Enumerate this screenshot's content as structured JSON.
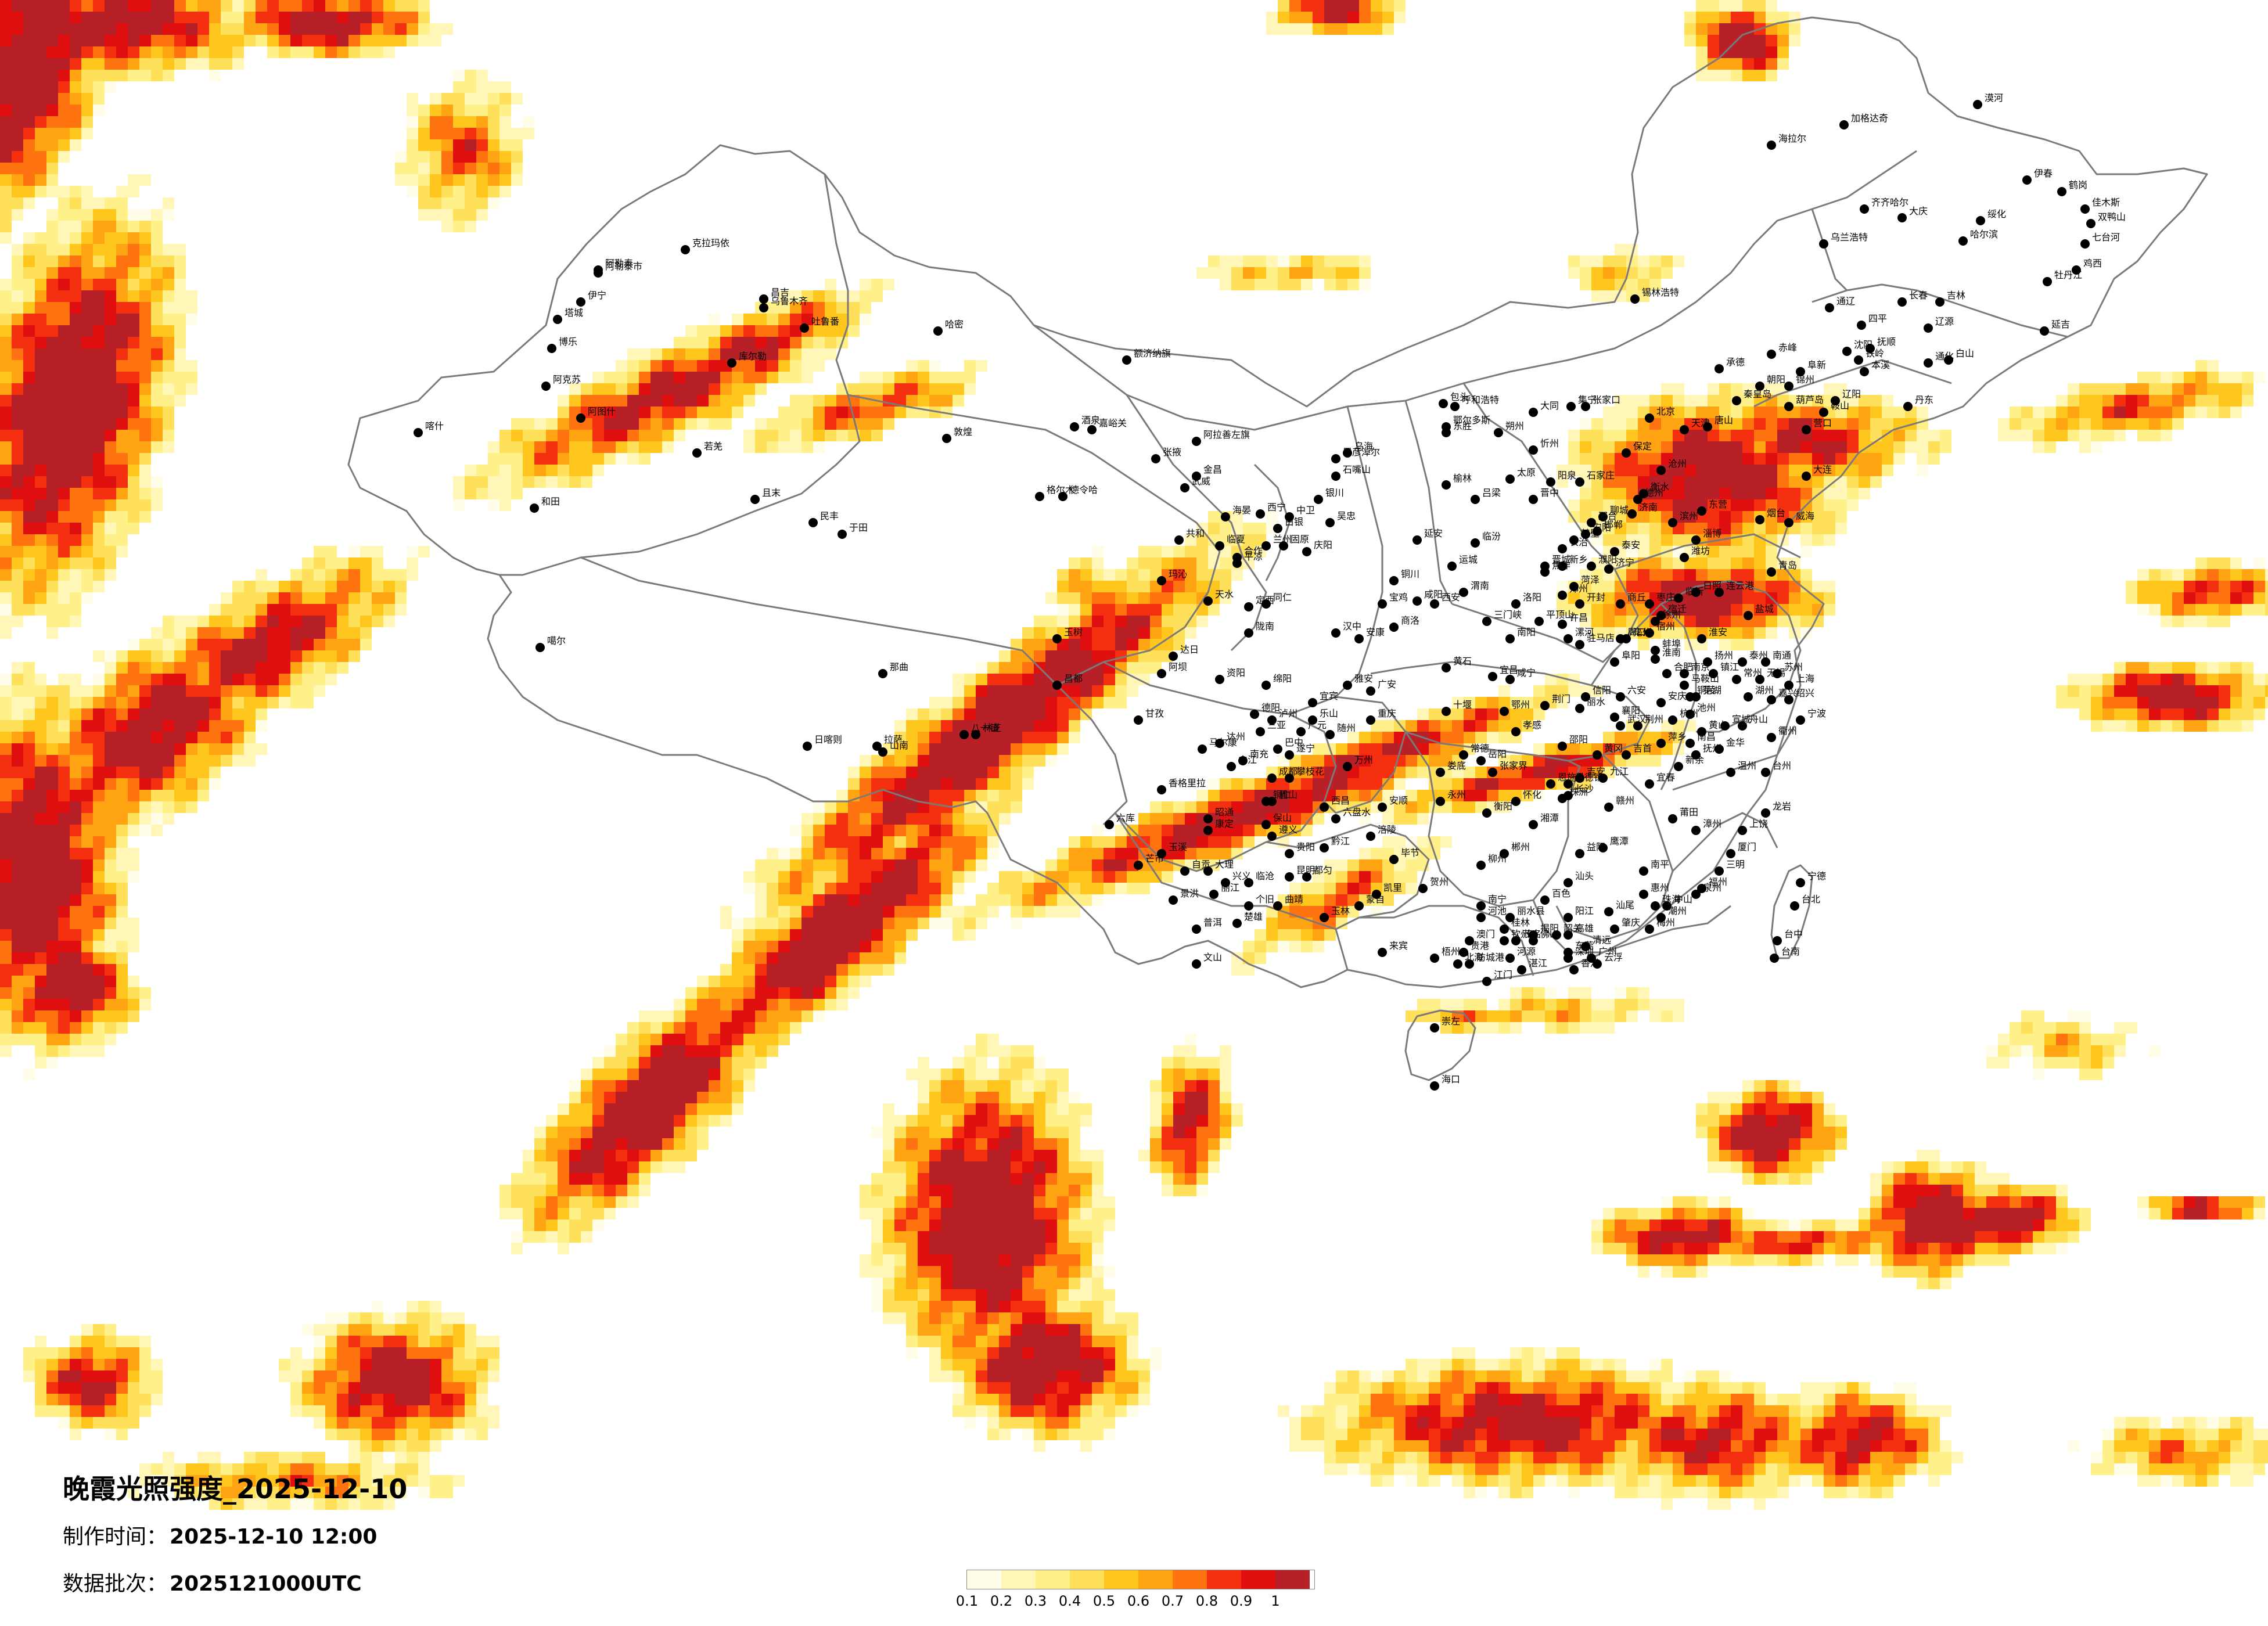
{
  "map": {
    "title": "晚霞光照强度_2025-12-10",
    "production_time_label": "制作时间：",
    "production_time_value": "2025-12-10 12:00",
    "batch_label": "数据批次：",
    "batch_value": "2025121000UTC"
  },
  "legend": {
    "labels": [
      "0.1",
      "0.2",
      "0.3",
      "0.4",
      "0.5",
      "0.6",
      "0.7",
      "0.8",
      "0.9",
      "1"
    ],
    "colors": [
      "#fffce8",
      "#fff6b8",
      "#fff08a",
      "#ffe05a",
      "#ffc61e",
      "#ffa412",
      "#ff7410",
      "#f43010",
      "#e01010",
      "#b82028"
    ]
  },
  "cities": [
    {
      "name": "喀什"
    },
    {
      "name": "克拉玛依"
    },
    {
      "name": "阿勒泰"
    },
    {
      "name": "伊宁"
    },
    {
      "name": "昌吉"
    },
    {
      "name": "乌鲁木齐"
    },
    {
      "name": "吐鲁番"
    },
    {
      "name": "哈密"
    },
    {
      "name": "库尔勒"
    },
    {
      "name": "阿克苏"
    },
    {
      "name": "和田"
    },
    {
      "name": "嘉峪关"
    },
    {
      "name": "酒泉"
    },
    {
      "name": "敦煌"
    },
    {
      "name": "张掖"
    },
    {
      "name": "武威"
    },
    {
      "name": "金昌"
    },
    {
      "name": "格尔木"
    },
    {
      "name": "德令哈"
    },
    {
      "name": "西宁"
    },
    {
      "name": "兰州"
    },
    {
      "name": "玛沁"
    },
    {
      "name": "玉树"
    },
    {
      "name": "那曲"
    },
    {
      "name": "日喀则"
    },
    {
      "name": "拉萨"
    },
    {
      "name": "山南"
    },
    {
      "name": "林芝"
    },
    {
      "name": "昌都"
    },
    {
      "name": "八一镇"
    },
    {
      "name": "噶尔"
    },
    {
      "name": "银川"
    },
    {
      "name": "吴忠"
    },
    {
      "name": "中卫"
    },
    {
      "name": "固原"
    },
    {
      "name": "乌海"
    },
    {
      "name": "巴彦淖尔"
    },
    {
      "name": "包头"
    },
    {
      "name": "呼和浩特"
    },
    {
      "name": "鄂尔多斯"
    },
    {
      "name": "东胜"
    },
    {
      "name": "集宁"
    },
    {
      "name": "锡林浩特"
    },
    {
      "name": "赤峰"
    },
    {
      "name": "通辽"
    },
    {
      "name": "乌兰浩特"
    },
    {
      "name": "海拉尔"
    },
    {
      "name": "加格达奇"
    },
    {
      "name": "漠河"
    },
    {
      "name": "齐齐哈尔"
    },
    {
      "name": "大庆"
    },
    {
      "name": "哈尔滨"
    },
    {
      "name": "绥化"
    },
    {
      "name": "伊春"
    },
    {
      "name": "鹤岗"
    },
    {
      "name": "佳木斯"
    },
    {
      "name": "双鸭山"
    },
    {
      "name": "七台河"
    },
    {
      "name": "鸡西"
    },
    {
      "name": "牡丹江"
    },
    {
      "name": "长春"
    },
    {
      "name": "吉林"
    },
    {
      "name": "四平"
    },
    {
      "name": "辽源"
    },
    {
      "name": "通化"
    },
    {
      "name": "白山"
    },
    {
      "name": "延吉"
    },
    {
      "name": "沈阳"
    },
    {
      "name": "抚顺"
    },
    {
      "name": "本溪"
    },
    {
      "name": "丹东"
    },
    {
      "name": "大连"
    },
    {
      "name": "锦州"
    },
    {
      "name": "阜新"
    },
    {
      "name": "朝阳"
    },
    {
      "name": "葫芦岛"
    },
    {
      "name": "营口"
    },
    {
      "name": "鞍山"
    },
    {
      "name": "辽阳"
    },
    {
      "name": "铁岭"
    },
    {
      "name": "承德"
    },
    {
      "name": "张家口"
    },
    {
      "name": "北京"
    },
    {
      "name": "天津"
    },
    {
      "name": "唐山"
    },
    {
      "name": "秦皇岛"
    },
    {
      "name": "保定"
    },
    {
      "name": "石家庄"
    },
    {
      "name": "衡水"
    },
    {
      "name": "沧州"
    },
    {
      "name": "邢台"
    },
    {
      "name": "邯郸"
    },
    {
      "name": "大同"
    },
    {
      "name": "朔州"
    },
    {
      "name": "忻州"
    },
    {
      "name": "太原"
    },
    {
      "name": "阳泉"
    },
    {
      "name": "晋中"
    },
    {
      "name": "吕梁"
    },
    {
      "name": "长治"
    },
    {
      "name": "晋城"
    },
    {
      "name": "临汾"
    },
    {
      "name": "运城"
    },
    {
      "name": "榆林"
    },
    {
      "name": "延安"
    },
    {
      "name": "铜川"
    },
    {
      "name": "渭南"
    },
    {
      "name": "西安"
    },
    {
      "name": "咸阳"
    },
    {
      "name": "宝鸡"
    },
    {
      "name": "汉中"
    },
    {
      "name": "安康"
    },
    {
      "name": "商洛"
    },
    {
      "name": "天水"
    },
    {
      "name": "平凉"
    },
    {
      "name": "庆阳"
    },
    {
      "name": "定西"
    },
    {
      "name": "陇南"
    },
    {
      "name": "济南"
    },
    {
      "name": "德州"
    },
    {
      "name": "聊城"
    },
    {
      "name": "泰安"
    },
    {
      "name": "济宁"
    },
    {
      "name": "菏泽"
    },
    {
      "name": "枣庄"
    },
    {
      "name": "临沂"
    },
    {
      "name": "日照"
    },
    {
      "name": "潍坊"
    },
    {
      "name": "淄博"
    },
    {
      "name": "东营"
    },
    {
      "name": "滨州"
    },
    {
      "name": "烟台"
    },
    {
      "name": "威海"
    },
    {
      "name": "青岛"
    },
    {
      "name": "郑州"
    },
    {
      "name": "开封"
    },
    {
      "name": "洛阳"
    },
    {
      "name": "平顶山"
    },
    {
      "name": "安阳"
    },
    {
      "name": "鹤壁"
    },
    {
      "name": "新乡"
    },
    {
      "name": "焦作"
    },
    {
      "name": "濮阳"
    },
    {
      "name": "许昌"
    },
    {
      "name": "漯河"
    },
    {
      "name": "三门峡"
    },
    {
      "name": "南阳"
    },
    {
      "name": "商丘"
    },
    {
      "name": "信阳"
    },
    {
      "name": "周口"
    },
    {
      "name": "驻马店"
    },
    {
      "name": "徐州"
    },
    {
      "name": "连云港"
    },
    {
      "name": "宿迁"
    },
    {
      "name": "淮安"
    },
    {
      "name": "盐城"
    },
    {
      "name": "扬州"
    },
    {
      "name": "泰州"
    },
    {
      "name": "南通"
    },
    {
      "name": "南京"
    },
    {
      "name": "镇江"
    },
    {
      "name": "常州"
    },
    {
      "name": "无锡"
    },
    {
      "name": "苏州"
    },
    {
      "name": "上海"
    },
    {
      "name": "合肥"
    },
    {
      "name": "蚌埠"
    },
    {
      "name": "淮南"
    },
    {
      "name": "阜阳"
    },
    {
      "name": "宿州"
    },
    {
      "name": "亳州"
    },
    {
      "name": "六安"
    },
    {
      "name": "安庆"
    },
    {
      "name": "芜湖"
    },
    {
      "name": "马鞍山"
    },
    {
      "name": "铜陵"
    },
    {
      "name": "黄山"
    },
    {
      "name": "宣城"
    },
    {
      "name": "池州"
    },
    {
      "name": "杭州"
    },
    {
      "name": "湖州"
    },
    {
      "name": "嘉兴"
    },
    {
      "name": "绍兴"
    },
    {
      "name": "宁波"
    },
    {
      "name": "舟山"
    },
    {
      "name": "金华"
    },
    {
      "name": "衢州"
    },
    {
      "name": "台州"
    },
    {
      "name": "温州"
    },
    {
      "name": "丽水"
    },
    {
      "name": "武汉"
    },
    {
      "name": "黄石"
    },
    {
      "name": "十堰"
    },
    {
      "name": "宜昌"
    },
    {
      "name": "襄阳"
    },
    {
      "name": "鄂州"
    },
    {
      "name": "荆门"
    },
    {
      "name": "孝感"
    },
    {
      "name": "荆州"
    },
    {
      "name": "黄冈"
    },
    {
      "name": "咸宁"
    },
    {
      "name": "随州"
    },
    {
      "name": "恩施"
    },
    {
      "name": "长沙"
    },
    {
      "name": "株洲"
    },
    {
      "name": "湘潭"
    },
    {
      "name": "衡阳"
    },
    {
      "name": "邵阳"
    },
    {
      "name": "岳阳"
    },
    {
      "name": "常德"
    },
    {
      "name": "张家界"
    },
    {
      "name": "益阳"
    },
    {
      "name": "郴州"
    },
    {
      "name": "永州"
    },
    {
      "name": "怀化"
    },
    {
      "name": "娄底"
    },
    {
      "name": "吉首"
    },
    {
      "name": "南昌"
    },
    {
      "name": "景德镇"
    },
    {
      "name": "萍乡"
    },
    {
      "name": "九江"
    },
    {
      "name": "新余"
    },
    {
      "name": "鹰潭"
    },
    {
      "name": "赣州"
    },
    {
      "name": "吉安"
    },
    {
      "name": "宜春"
    },
    {
      "name": "抚州"
    },
    {
      "name": "上饶"
    },
    {
      "name": "福州"
    },
    {
      "name": "厦门"
    },
    {
      "name": "莆田"
    },
    {
      "name": "三明"
    },
    {
      "name": "泉州"
    },
    {
      "name": "漳州"
    },
    {
      "name": "南平"
    },
    {
      "name": "龙岩"
    },
    {
      "name": "宁德"
    },
    {
      "name": "台北"
    },
    {
      "name": "台中"
    },
    {
      "name": "台南"
    },
    {
      "name": "高雄"
    },
    {
      "name": "广州"
    },
    {
      "name": "深圳"
    },
    {
      "name": "珠海"
    },
    {
      "name": "汕头"
    },
    {
      "name": "韶关"
    },
    {
      "name": "佛山"
    },
    {
      "name": "江门"
    },
    {
      "name": "湛江"
    },
    {
      "name": "茂名"
    },
    {
      "name": "肇庆"
    },
    {
      "name": "惠州"
    },
    {
      "name": "梅州"
    },
    {
      "name": "汕尾"
    },
    {
      "name": "河源"
    },
    {
      "name": "阳江"
    },
    {
      "name": "清远"
    },
    {
      "name": "东莞"
    },
    {
      "name": "中山"
    },
    {
      "name": "潮州"
    },
    {
      "name": "揭阳"
    },
    {
      "name": "云浮"
    },
    {
      "name": "香港"
    },
    {
      "name": "澳门"
    },
    {
      "name": "南宁"
    },
    {
      "name": "柳州"
    },
    {
      "name": "桂林"
    },
    {
      "name": "梧州"
    },
    {
      "name": "北海"
    },
    {
      "name": "防城港"
    },
    {
      "name": "钦州"
    },
    {
      "name": "贵港"
    },
    {
      "name": "玉林"
    },
    {
      "name": "百色"
    },
    {
      "name": "贺州"
    },
    {
      "name": "河池"
    },
    {
      "name": "来宾"
    },
    {
      "name": "崇左"
    },
    {
      "name": "海口"
    },
    {
      "name": "三亚"
    },
    {
      "name": "成都"
    },
    {
      "name": "自贡"
    },
    {
      "name": "攀枝花"
    },
    {
      "name": "泸州"
    },
    {
      "name": "德阳"
    },
    {
      "name": "绵阳"
    },
    {
      "name": "广元"
    },
    {
      "name": "遂宁"
    },
    {
      "name": "内江"
    },
    {
      "name": "乐山"
    },
    {
      "name": "南充"
    },
    {
      "name": "眉山"
    },
    {
      "name": "宜宾"
    },
    {
      "name": "广安"
    },
    {
      "name": "达州"
    },
    {
      "name": "雅安"
    },
    {
      "name": "巴中"
    },
    {
      "name": "资阳"
    },
    {
      "name": "马尔康"
    },
    {
      "name": "康定"
    },
    {
      "name": "西昌"
    },
    {
      "name": "重庆"
    },
    {
      "name": "万州"
    },
    {
      "name": "涪陵"
    },
    {
      "name": "黔江"
    },
    {
      "name": "贵阳"
    },
    {
      "name": "六盘水"
    },
    {
      "name": "遵义"
    },
    {
      "name": "安顺"
    },
    {
      "name": "铜仁"
    },
    {
      "name": "毕节"
    },
    {
      "name": "凯里"
    },
    {
      "name": "都匀"
    },
    {
      "name": "兴义"
    },
    {
      "name": "昆明"
    },
    {
      "name": "曲靖"
    },
    {
      "name": "玉溪"
    },
    {
      "name": "保山"
    },
    {
      "name": "昭通"
    },
    {
      "name": "丽江"
    },
    {
      "name": "普洱"
    },
    {
      "name": "临沧"
    },
    {
      "name": "楚雄"
    },
    {
      "name": "蒙自"
    },
    {
      "name": "文山"
    },
    {
      "name": "景洪"
    },
    {
      "name": "大理"
    },
    {
      "name": "芒市"
    },
    {
      "name": "香格里拉"
    },
    {
      "name": "六库"
    },
    {
      "name": "个旧"
    },
    {
      "name": "丽水县"
    },
    {
      "name": "甘孜"
    },
    {
      "name": "阿坝"
    },
    {
      "name": "达日"
    },
    {
      "name": "海晏"
    },
    {
      "name": "共和"
    },
    {
      "name": "同仁"
    },
    {
      "name": "合作"
    },
    {
      "name": "临夏"
    },
    {
      "name": "白银"
    },
    {
      "name": "石嘴山"
    },
    {
      "name": "阿拉善左旗"
    },
    {
      "name": "额济纳旗"
    },
    {
      "name": "阿勒泰市"
    },
    {
      "name": "塔城"
    },
    {
      "name": "博乐"
    },
    {
      "name": "阿图什"
    },
    {
      "name": "若羌"
    },
    {
      "name": "且末"
    },
    {
      "name": "民丰"
    },
    {
      "name": "于田"
    }
  ]
}
